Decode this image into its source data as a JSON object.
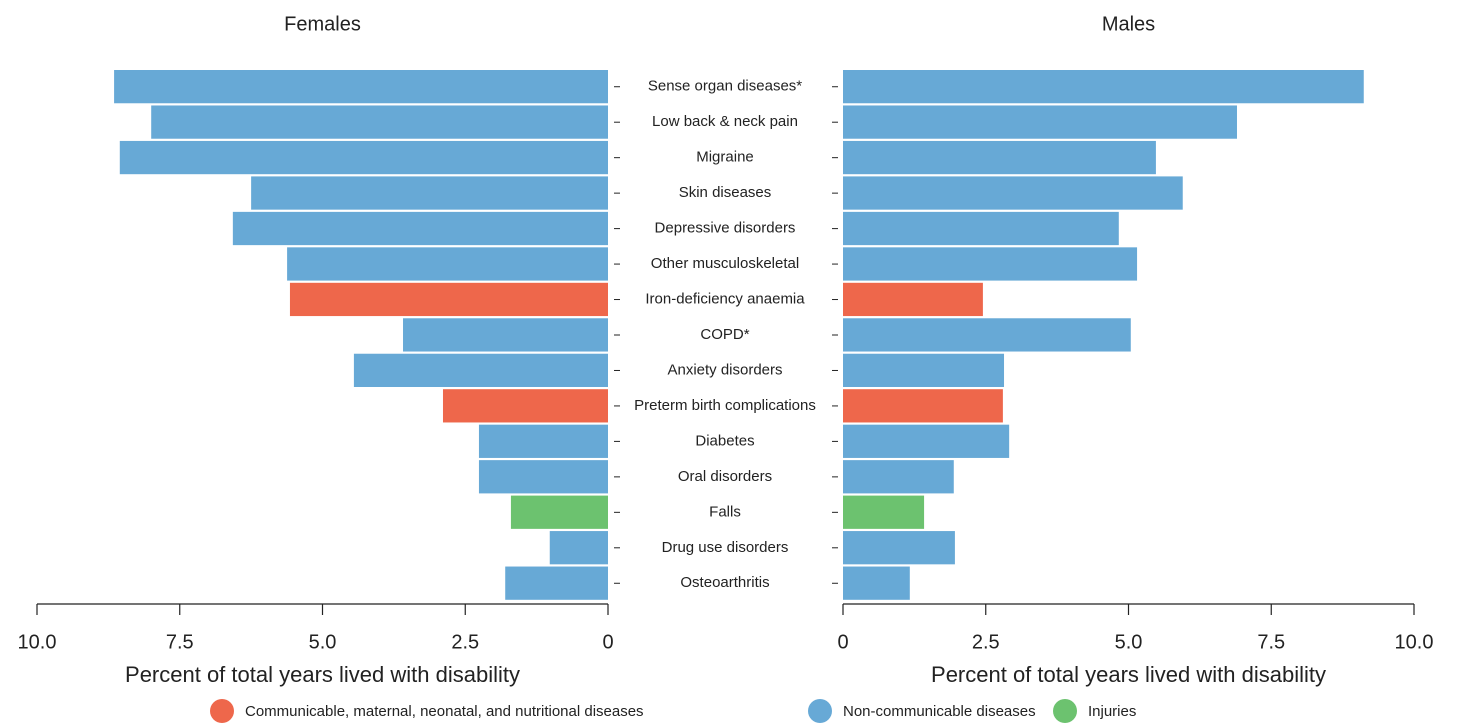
{
  "chart_data": {
    "type": "butterfly",
    "categories": [
      "Sense organ diseases*",
      "Low back & neck pain",
      "Migraine",
      "Skin diseases",
      "Depressive disorders",
      "Other musculoskeletal",
      "Iron-deficiency anaemia",
      "COPD*",
      "Anxiety disorders",
      "Preterm birth complications",
      "Diabetes",
      "Oral disorders",
      "Falls",
      "Drug use disorders",
      "Osteoarthritis"
    ],
    "panels": [
      {
        "title": "Females",
        "xlabel": "Percent of total years lived with disability",
        "xlim": [
          10,
          0
        ],
        "xticks": [
          {
            "value": 10,
            "label": "10.0"
          },
          7.5,
          {
            "value": 5,
            "label": "5.0"
          },
          2.5,
          0
        ]
      },
      {
        "title": "Males",
        "xlabel": "Percent of total years lived with disability",
        "xlim": [
          0,
          10
        ],
        "xticks": [
          0,
          2.5,
          {
            "value": 5,
            "label": "5.0"
          },
          7.5,
          {
            "value": 10,
            "label": "10.0"
          }
        ]
      }
    ],
    "series": [
      {
        "name": "Communicable, maternal, neonatal, and nutritional diseases",
        "color": "#ee674b",
        "values": [
          [
            null,
            null,
            null,
            null,
            null,
            null,
            5.57,
            null,
            null,
            2.89,
            null,
            null,
            null,
            null,
            null
          ],
          [
            null,
            null,
            null,
            null,
            null,
            null,
            2.45,
            null,
            null,
            2.8,
            null,
            null,
            null,
            null,
            null
          ]
        ]
      },
      {
        "name": "Non-communicable diseases",
        "color": "#67a9d6",
        "values": [
          [
            8.65,
            8.0,
            8.55,
            6.25,
            6.57,
            5.62,
            null,
            3.59,
            4.45,
            null,
            2.26,
            2.26,
            null,
            1.02,
            1.8
          ],
          [
            9.12,
            6.9,
            5.48,
            5.95,
            4.83,
            5.15,
            null,
            5.04,
            2.82,
            null,
            2.91,
            1.94,
            null,
            1.96,
            1.17
          ]
        ]
      },
      {
        "name": "Injuries",
        "color": "#6cc26f",
        "values": [
          [
            null,
            null,
            null,
            null,
            null,
            null,
            null,
            null,
            null,
            null,
            null,
            null,
            1.7,
            null,
            null
          ],
          [
            null,
            null,
            null,
            null,
            null,
            null,
            null,
            null,
            null,
            null,
            null,
            null,
            1.42,
            null,
            null
          ]
        ]
      }
    ]
  }
}
